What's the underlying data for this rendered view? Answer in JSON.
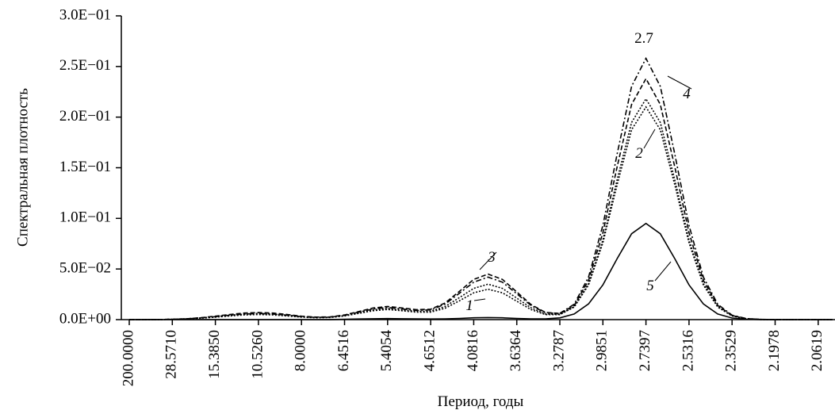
{
  "chart_data": {
    "type": "line",
    "y_label": "Спектральная плотность",
    "x_label": "Период, годы",
    "peak_label": "2.7",
    "categories": [
      "200.0000",
      null,
      null,
      "28.5710",
      null,
      null,
      "15.3850",
      null,
      null,
      "10.5260",
      null,
      null,
      "8.0000",
      null,
      null,
      "6.4516",
      null,
      null,
      "5.4054",
      null,
      null,
      "4.6512",
      null,
      null,
      "4.0816",
      null,
      null,
      "3.6364",
      null,
      null,
      "3.2787",
      null,
      null,
      "2.9851",
      null,
      null,
      "2.7397",
      null,
      null,
      "2.5316",
      null,
      null,
      "2.3529",
      null,
      null,
      "2.1978",
      null,
      null,
      "2.0619",
      null
    ],
    "ylim": [
      0,
      0.3
    ],
    "yticks": [
      {
        "value": 0,
        "label": "0.0E+00"
      },
      {
        "value": 0.05,
        "label": "5.0E−02"
      },
      {
        "value": 0.1,
        "label": "1.0E−01"
      },
      {
        "value": 0.15,
        "label": "1.5E−01"
      },
      {
        "value": 0.2,
        "label": "2.0E−01"
      },
      {
        "value": 0.25,
        "label": "2.5E−01"
      },
      {
        "value": 0.3,
        "label": "3.0E−01"
      }
    ],
    "series": [
      {
        "name": "1",
        "color": "#000000",
        "style": "dotted",
        "values": [
          0,
          0,
          0.0001,
          0.0003,
          0.0007,
          0.0014,
          0.0024,
          0.0036,
          0.0046,
          0.005,
          0.0046,
          0.0036,
          0.0024,
          0.0018,
          0.0021,
          0.0036,
          0.0062,
          0.0088,
          0.01,
          0.0088,
          0.0074,
          0.0074,
          0.0112,
          0.0186,
          0.0265,
          0.03,
          0.0265,
          0.0182,
          0.0099,
          0.0049,
          0.0049,
          0.0124,
          0.0342,
          0.0758,
          0.1336,
          0.1875,
          0.21,
          0.1875,
          0.1336,
          0.0758,
          0.0342,
          0.0124,
          0.0036,
          0.0008,
          0.0001,
          0,
          0,
          0,
          0,
          0
        ]
      },
      {
        "name": "2",
        "color": "#000000",
        "style": "dotted",
        "values": [
          0,
          0,
          0.0001,
          0.0003,
          0.0008,
          0.0017,
          0.0029,
          0.0044,
          0.0055,
          0.006,
          0.0055,
          0.0044,
          0.0029,
          0.0022,
          0.0023,
          0.0039,
          0.0068,
          0.0097,
          0.011,
          0.0097,
          0.0082,
          0.0083,
          0.0129,
          0.0217,
          0.0309,
          0.035,
          0.0309,
          0.0212,
          0.0116,
          0.0056,
          0.0052,
          0.0129,
          0.0355,
          0.0787,
          0.1386,
          0.1947,
          0.218,
          0.1947,
          0.1386,
          0.0787,
          0.0355,
          0.0129,
          0.0037,
          0.0009,
          0.0002,
          0,
          0,
          0,
          0,
          0
        ]
      },
      {
        "name": "3",
        "color": "#000000",
        "style": "dashed",
        "values": [
          0,
          0,
          0.0001,
          0.0004,
          0.0009,
          0.0019,
          0.0034,
          0.0051,
          0.0065,
          0.007,
          0.0065,
          0.0051,
          0.0034,
          0.0025,
          0.0027,
          0.0046,
          0.008,
          0.0115,
          0.013,
          0.0115,
          0.0099,
          0.0103,
          0.0164,
          0.0279,
          0.0397,
          0.045,
          0.0397,
          0.0273,
          0.0148,
          0.0071,
          0.006,
          0.014,
          0.0388,
          0.0859,
          0.1514,
          0.2125,
          0.238,
          0.2125,
          0.1514,
          0.0859,
          0.0388,
          0.014,
          0.004,
          0.001,
          0.0002,
          0,
          0,
          0,
          0,
          0
        ]
      },
      {
        "name": "4",
        "color": "#000000",
        "style": "dashdot",
        "values": [
          0,
          0,
          0.0001,
          0.0003,
          0.0008,
          0.0017,
          0.0029,
          0.0044,
          0.0055,
          0.006,
          0.0055,
          0.0044,
          0.0029,
          0.0022,
          0.0024,
          0.0042,
          0.0074,
          0.0106,
          0.012,
          0.0106,
          0.0091,
          0.0096,
          0.0153,
          0.026,
          0.037,
          0.042,
          0.037,
          0.0255,
          0.0139,
          0.0067,
          0.0062,
          0.0152,
          0.0421,
          0.0931,
          0.1641,
          0.2304,
          0.258,
          0.2304,
          0.1641,
          0.0931,
          0.0421,
          0.0152,
          0.0044,
          0.001,
          0.0002,
          0,
          0,
          0,
          0,
          0
        ]
      },
      {
        "name": "5",
        "color": "#000000",
        "style": "solid",
        "values": [
          0,
          0,
          0,
          0,
          0,
          0,
          0,
          0,
          0,
          0,
          0,
          0,
          0,
          0,
          0.0001,
          0.0003,
          0.0006,
          0.0009,
          0.001,
          0.0009,
          0.0007,
          0.0006,
          0.0008,
          0.0012,
          0.0018,
          0.002,
          0.0018,
          0.0012,
          0.0008,
          0.0007,
          0.0017,
          0.0056,
          0.0155,
          0.0343,
          0.0604,
          0.0848,
          0.095,
          0.0848,
          0.0604,
          0.0343,
          0.0155,
          0.0056,
          0.0016,
          0.0004,
          0.0001,
          0,
          0,
          0,
          0,
          0
        ]
      }
    ]
  }
}
